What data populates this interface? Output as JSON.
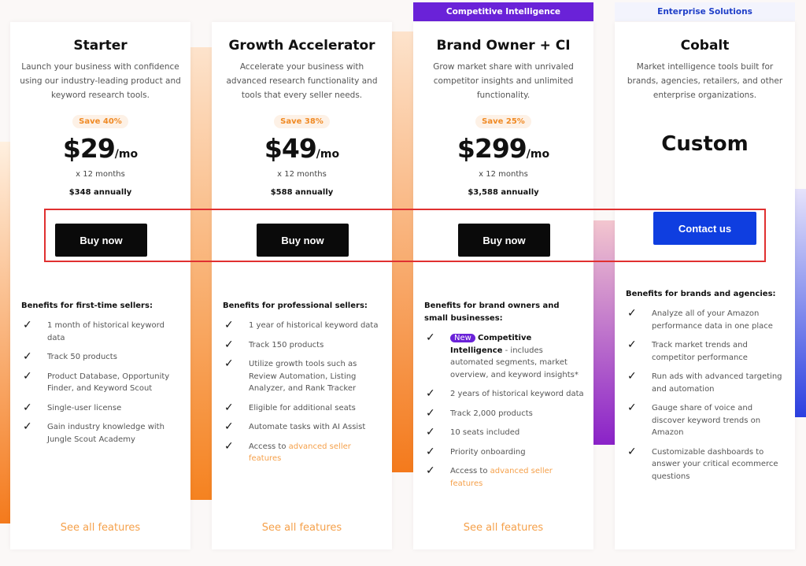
{
  "colors": {
    "accent_orange": "#f08a24",
    "ci_purple": "#6a22d8",
    "cobalt_blue": "#0f3ee0",
    "highlight": "#e03030"
  },
  "plans": [
    {
      "title": "Starter",
      "description": "Launch your business with confidence using our industry-leading product and keyword research tools.",
      "save": "Save 40%",
      "price": "$29",
      "per": "/mo",
      "months": "x 12 months",
      "annual": "$348 annually",
      "cta": "Buy now",
      "benefits_heading": "Benefits for first-time sellers:",
      "benefits": [
        "1 month of historical keyword data",
        "Track 50 products",
        "Product Database, Opportunity Finder, and Keyword Scout",
        "Single-user license",
        "Gain industry knowledge with Jungle Scout Academy"
      ],
      "see_all": "See all features"
    },
    {
      "title": "Growth Accelerator",
      "description": "Accelerate your business with advanced research functionality and tools that every seller needs.",
      "save": "Save 38%",
      "price": "$49",
      "per": "/mo",
      "months": "x 12 months",
      "annual": "$588 annually",
      "cta": "Buy now",
      "benefits_heading": "Benefits for professional sellers:",
      "benefits": [
        "1 year of historical keyword data",
        "Track 150 products",
        "Utilize growth tools such as Review Automation, Listing Analyzer, and Rank Tracker",
        "Eligible for additional seats",
        "Automate tasks with AI Assist"
      ],
      "access_prefix": "Access to ",
      "access_link": "advanced seller features",
      "see_all": "See all features"
    },
    {
      "banner": "Competitive Intelligence",
      "title": "Brand Owner + CI",
      "description": "Grow market share with unrivaled competitor insights and unlimited functionality.",
      "save": "Save 25%",
      "price": "$299",
      "per": "/mo",
      "months": "x 12 months",
      "annual": "$3,588 annually",
      "cta": "Buy now",
      "benefits_heading": "Benefits for brand owners and small businesses:",
      "new_badge": "New",
      "ci_title": "Competitive Intelligence",
      "ci_desc": " - includes automated segments, market overview, and keyword insights*",
      "benefits": [
        "2 years of historical keyword data",
        "Track 2,000 products",
        "10 seats included",
        "Priority onboarding"
      ],
      "access_prefix": "Access to ",
      "access_link": "advanced seller features",
      "see_all": "See all features"
    },
    {
      "banner": "Enterprise Solutions",
      "title": "Cobalt",
      "description": "Market intelligence tools built for brands, agencies, retailers, and other enterprise organizations.",
      "price": "Custom",
      "cta": "Contact us",
      "benefits_heading": "Benefits for brands and agencies:",
      "benefits": [
        "Analyze all of your Amazon performance data in one place",
        "Track market trends and competitor performance",
        "Run ads with advanced targeting and automation",
        "Gauge share of voice and discover keyword trends on Amazon",
        "Customizable dashboards to answer your critical ecommerce questions"
      ]
    }
  ]
}
